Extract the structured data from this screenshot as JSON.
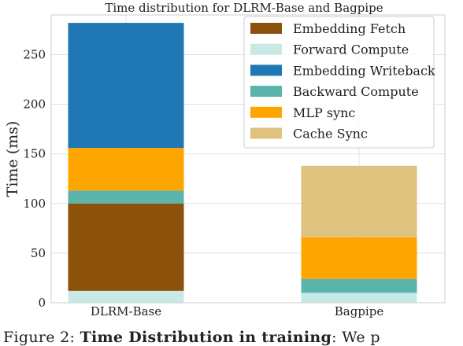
{
  "chart_data": {
    "type": "bar",
    "stacked": true,
    "title": "Time distribution for DLRM-Base and Bagpipe",
    "xlabel": "",
    "ylabel": "Time (ms)",
    "ylim": [
      0,
      290
    ],
    "yticks": [
      0,
      50,
      100,
      150,
      200,
      250
    ],
    "grid": true,
    "legend_position": "top-right",
    "categories": [
      "DLRM-Base",
      "Bagpipe"
    ],
    "series": [
      {
        "name": "Embedding Fetch",
        "color": "#8c510a",
        "values": [
          88,
          0
        ]
      },
      {
        "name": "Forward Compute",
        "color": "#c7eae5",
        "values": [
          12,
          10
        ]
      },
      {
        "name": "Embedding Writeback",
        "color": "#1f78b4",
        "values": [
          126,
          0
        ]
      },
      {
        "name": "Backward Compute",
        "color": "#5ab4ac",
        "values": [
          13,
          14
        ]
      },
      {
        "name": "MLP sync",
        "color": "#ffa500",
        "values": [
          43,
          42
        ]
      },
      {
        "name": "Cache Sync",
        "color": "#dfc27d",
        "values": [
          0,
          72
        ]
      }
    ],
    "stack_order": [
      "Forward Compute",
      "Embedding Fetch",
      "Backward Compute",
      "MLP sync",
      "Embedding Writeback",
      "Cache Sync"
    ]
  },
  "caption": {
    "prefix": "Figure 2: ",
    "bold": "Time Distribution in training",
    "suffix": ": We p"
  }
}
